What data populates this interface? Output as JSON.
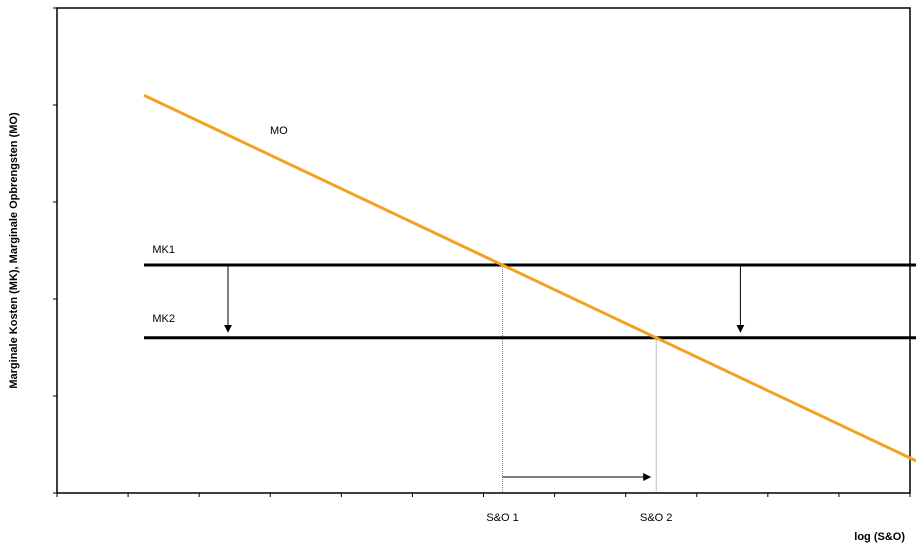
{
  "chart_data": {
    "type": "line",
    "title": "",
    "xlabel": "log (S&O)",
    "ylabel": "Marginale Kosten (MK), Marginale Opbrengsten (MO)",
    "xlim": [
      0,
      10
    ],
    "ylim": [
      0,
      10
    ],
    "grid": false,
    "colors": {
      "mo": "#f5a01e",
      "mk": "#000000"
    },
    "series": [
      {
        "name": "MO",
        "x": [
          1,
          11
        ],
        "y": [
          8.2,
          0
        ]
      },
      {
        "name": "MK1",
        "x": [
          1,
          11
        ],
        "y": [
          4.7,
          4.7
        ]
      },
      {
        "name": "MK2",
        "x": [
          1,
          11
        ],
        "y": [
          3.2,
          3.2
        ]
      }
    ],
    "x_tick_labels": [
      {
        "label": "S&O 1",
        "x": 5
      },
      {
        "label": "S&O 2",
        "x": 7
      }
    ],
    "annotations": [
      {
        "type": "arrow",
        "direction": "down",
        "from": "MK1",
        "to": "MK2"
      },
      {
        "type": "arrow",
        "direction": "right",
        "from": "S&O 1",
        "to": "S&O 2"
      }
    ]
  }
}
